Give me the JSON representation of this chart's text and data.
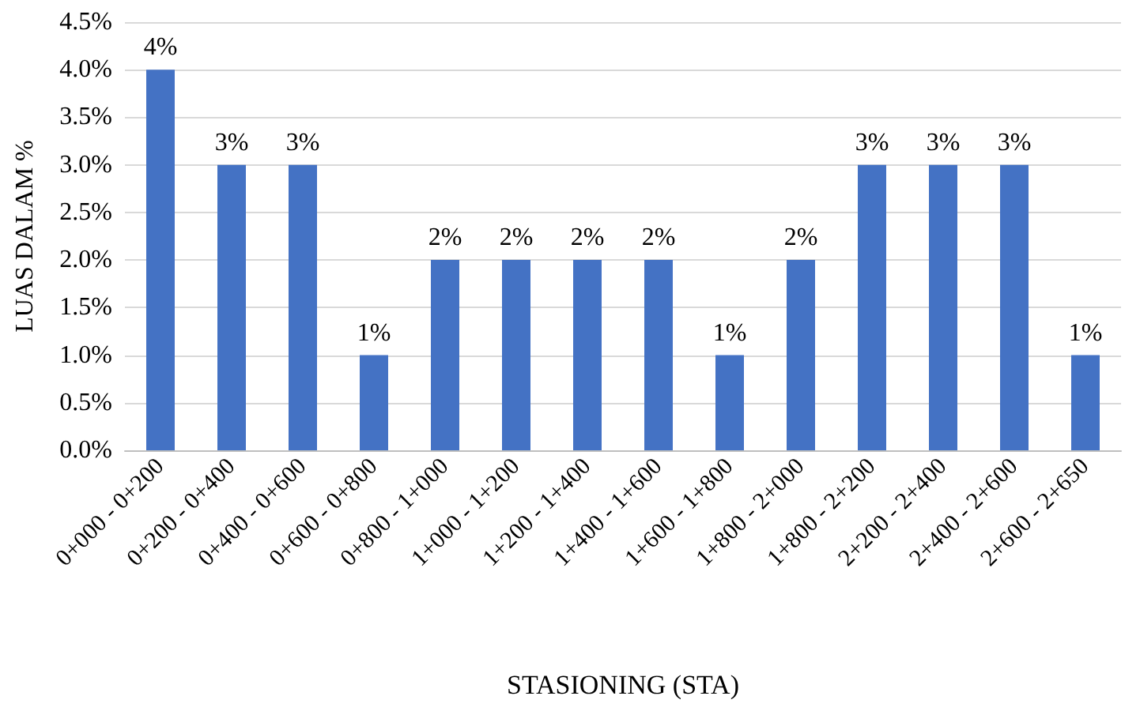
{
  "chart_data": {
    "type": "bar",
    "xlabel": "STASIONING (STA)",
    "ylabel": "LUAS DALAM %",
    "categories": [
      "0+000 - 0+200",
      "0+200 - 0+400",
      "0+400 - 0+600",
      "0+600 - 0+800",
      "0+800 - 1+000",
      "1+000 - 1+200",
      "1+200 - 1+400",
      "1+400 - 1+600",
      "1+600 - 1+800",
      "1+800 - 2+000",
      "1+800 - 2+200",
      "2+200 - 2+400",
      "2+400 - 2+600",
      "2+600 - 2+650"
    ],
    "values": [
      4,
      3,
      3,
      1,
      2,
      2,
      2,
      2,
      1,
      2,
      3,
      3,
      3,
      1
    ],
    "value_labels": [
      "4%",
      "3%",
      "3%",
      "1%",
      "2%",
      "2%",
      "2%",
      "2%",
      "1%",
      "2%",
      "3%",
      "3%",
      "3%",
      "1%"
    ],
    "color": "#4472c4",
    "ylim": [
      0,
      4.5
    ],
    "yticks": [
      {
        "value": 0,
        "label": "0.0%"
      },
      {
        "value": 0.5,
        "label": "0.5%"
      },
      {
        "value": 1,
        "label": "1.0%"
      },
      {
        "value": 1.5,
        "label": "1.5%"
      },
      {
        "value": 2,
        "label": "2.0%"
      },
      {
        "value": 2.5,
        "label": "2.5%"
      },
      {
        "value": 3,
        "label": "3.0%"
      },
      {
        "value": 3.5,
        "label": "3.5%"
      },
      {
        "value": 4,
        "label": "4.0%"
      },
      {
        "value": 4.5,
        "label": "4.5%"
      }
    ],
    "grid": "y"
  }
}
